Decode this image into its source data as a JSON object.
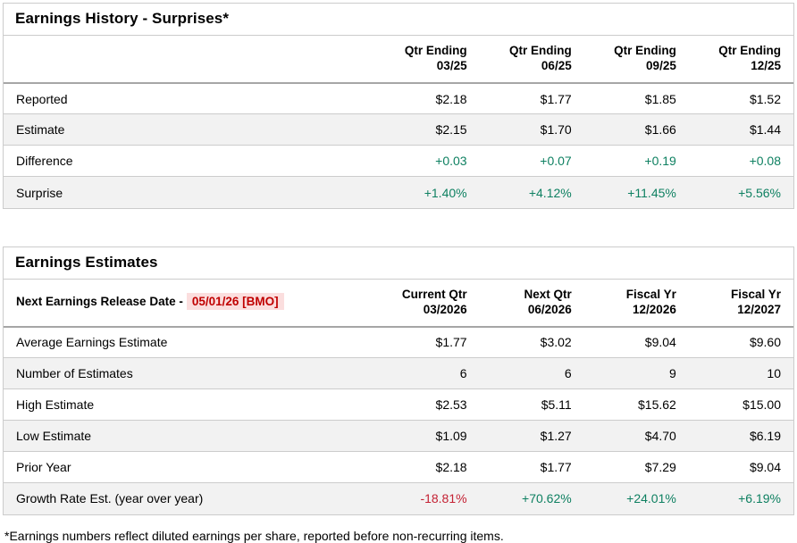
{
  "colors": {
    "green": "#0e8061",
    "red": "#c42133",
    "date-red": "#c00000",
    "date-bg": "#fbdede",
    "stripe": "#f2f2f2",
    "border": "#cccccc",
    "header-sep": "#a6a6a6"
  },
  "surprises": {
    "title": "Earnings History - Surprises*",
    "columns": [
      {
        "line1": "Qtr Ending",
        "line2": "03/25"
      },
      {
        "line1": "Qtr Ending",
        "line2": "06/25"
      },
      {
        "line1": "Qtr Ending",
        "line2": "09/25"
      },
      {
        "line1": "Qtr Ending",
        "line2": "12/25"
      }
    ],
    "rows": [
      {
        "label": "Reported",
        "values": [
          "$2.18",
          "$1.77",
          "$1.85",
          "$1.52"
        ]
      },
      {
        "label": "Estimate",
        "values": [
          "$2.15",
          "$1.70",
          "$1.66",
          "$1.44"
        ]
      },
      {
        "label": "Difference",
        "values": [
          "+0.03",
          "+0.07",
          "+0.19",
          "+0.08"
        ]
      },
      {
        "label": "Surprise",
        "values": [
          "+1.40%",
          "+4.12%",
          "+11.45%",
          "+5.56%"
        ]
      }
    ]
  },
  "estimates": {
    "title": "Earnings Estimates",
    "release_label": "Next Earnings Release Date -",
    "release_date": "05/01/26 [BMO]",
    "columns": [
      {
        "line1": "Current Qtr",
        "line2": "03/2026"
      },
      {
        "line1": "Next Qtr",
        "line2": "06/2026"
      },
      {
        "line1": "Fiscal Yr",
        "line2": "12/2026"
      },
      {
        "line1": "Fiscal Yr",
        "line2": "12/2027"
      }
    ],
    "rows": [
      {
        "label": "Average Earnings Estimate",
        "values": [
          "$1.77",
          "$3.02",
          "$9.04",
          "$9.60"
        ]
      },
      {
        "label": "Number of Estimates",
        "values": [
          "6",
          "6",
          "9",
          "10"
        ]
      },
      {
        "label": "High Estimate",
        "values": [
          "$2.53",
          "$5.11",
          "$15.62",
          "$15.00"
        ]
      },
      {
        "label": "Low Estimate",
        "values": [
          "$1.09",
          "$1.27",
          "$4.70",
          "$6.19"
        ]
      },
      {
        "label": "Prior Year",
        "values": [
          "$2.18",
          "$1.77",
          "$7.29",
          "$9.04"
        ]
      },
      {
        "label": "Growth Rate Est. (year over year)",
        "values": [
          "-18.81%",
          "+70.62%",
          "+24.01%",
          "+6.19%"
        ]
      }
    ]
  },
  "footnote": "*Earnings numbers reflect diluted earnings per share, reported before non-recurring items."
}
